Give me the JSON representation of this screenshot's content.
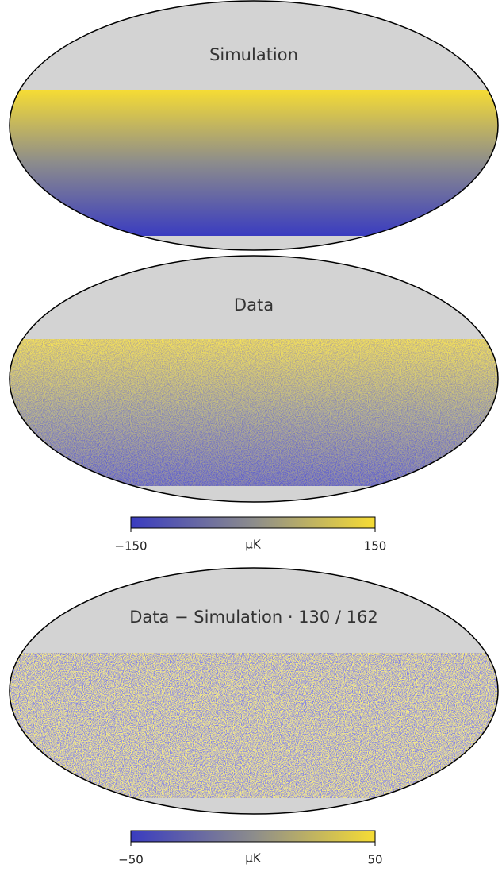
{
  "panels": [
    {
      "title": "Simulation"
    },
    {
      "title": "Data"
    },
    {
      "title": "Data − Simulation · 130 / 162"
    }
  ],
  "colormap": [
    "#3a3cc0",
    "#8c8c8c",
    "#f6dc34"
  ],
  "colorbars": [
    {
      "lim": [
        -150,
        150
      ],
      "ticks": [
        {
          "value": -150,
          "label": "−150"
        },
        150
      ],
      "unit": "μK"
    },
    {
      "lim": [
        -50,
        50
      ],
      "ticks": [
        {
          "value": -50,
          "label": "−50"
        },
        50
      ],
      "unit": "μK"
    }
  ]
}
